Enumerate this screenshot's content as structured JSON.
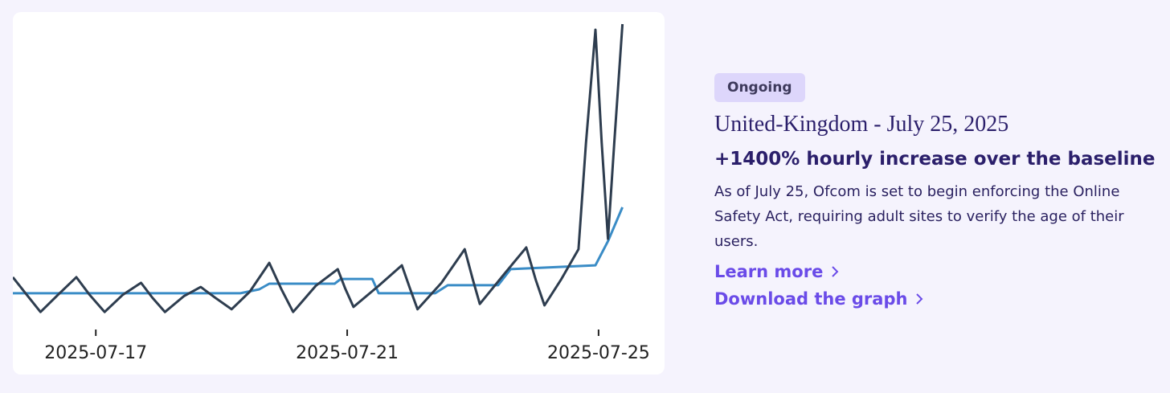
{
  "chart_data": {
    "type": "line",
    "xlim": [
      15.68,
      26.05
    ],
    "ylim": [
      0,
      100
    ],
    "xticks": [
      {
        "value": 17,
        "label": "2025-07-17"
      },
      {
        "value": 21,
        "label": "2025-07-21"
      },
      {
        "value": 25,
        "label": "2025-07-25"
      }
    ],
    "series": [
      {
        "color": "#2e3d4f",
        "x": [
          15.68,
          15.9,
          16.12,
          16.4,
          16.69,
          16.9,
          17.14,
          17.43,
          17.72,
          17.9,
          18.1,
          18.4,
          18.67,
          18.9,
          19.16,
          19.45,
          19.76,
          19.95,
          20.14,
          20.5,
          20.85,
          20.97,
          21.1,
          21.5,
          21.87,
          22.0,
          22.12,
          22.5,
          22.87,
          23.0,
          23.11,
          23.5,
          23.85,
          24.0,
          24.14,
          24.4,
          24.68,
          24.8,
          24.95,
          25.05,
          25.15,
          25.25,
          25.38
        ],
        "values": [
          14.9,
          9,
          3.2,
          9,
          14.9,
          9,
          3.2,
          9,
          13,
          8,
          3.2,
          8.5,
          11.6,
          8,
          4.1,
          10,
          19.7,
          11,
          3.2,
          12,
          17.6,
          11,
          4.9,
          12,
          18.9,
          11,
          4.1,
          13,
          24.3,
          14,
          5.9,
          16,
          24.9,
          14,
          5.4,
          14,
          24.3,
          60,
          98.1,
          60,
          27.8,
          60,
          100
        ]
      },
      {
        "color": "#3a8cc6",
        "x": [
          15.68,
          19.3,
          19.6,
          19.76,
          20.8,
          20.9,
          21.4,
          21.5,
          22.4,
          22.6,
          23.4,
          23.6,
          24.95,
          25.15,
          25.38
        ],
        "values": [
          9.5,
          9.5,
          10.8,
          12.7,
          12.7,
          14.3,
          14.3,
          9.5,
          9.5,
          12.2,
          12.2,
          17.6,
          18.9,
          27,
          38.4
        ]
      }
    ]
  },
  "card": {
    "badge": "Ongoing",
    "title": "United-Kingdom - July 25, 2025",
    "headline": "+1400% hourly increase over the baseline",
    "description": "As of July 25, Ofcom is set to begin enforcing the Online Safety Act, requiring adult sites to verify the age of their users.",
    "links": [
      "Learn more",
      "Download the graph"
    ]
  }
}
